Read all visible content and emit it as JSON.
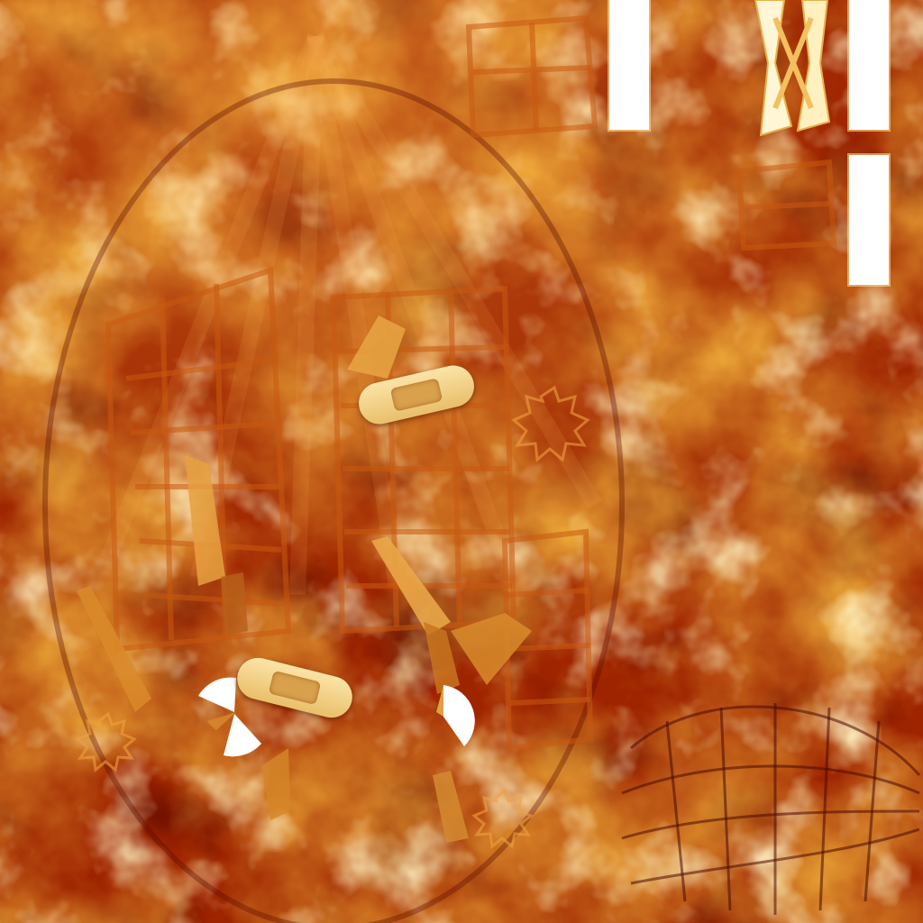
{
  "scene": {
    "kind": "texture-atlas",
    "palette": {
      "dark": "#6a0a00",
      "mid": "#b83a00",
      "glow": "#f0a030",
      "highlight": "#fff4c8",
      "bandage": "#f3d58d"
    },
    "icons": [
      "status-bar-icon",
      "broken-bar-icon",
      "bandage-icon",
      "pie-wedge-icon",
      "cage-net-icon"
    ],
    "bandage_count": 2
  }
}
